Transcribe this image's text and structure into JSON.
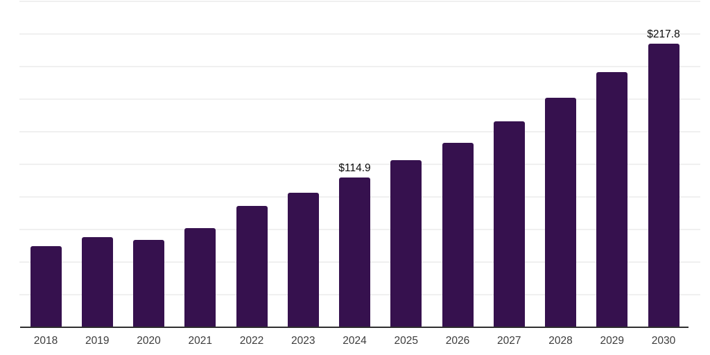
{
  "chart_data": {
    "type": "bar",
    "title": "",
    "xlabel": "",
    "ylabel": "",
    "categories": [
      "2018",
      "2019",
      "2020",
      "2021",
      "2022",
      "2023",
      "2024",
      "2025",
      "2026",
      "2027",
      "2028",
      "2029",
      "2030"
    ],
    "values": [
      62.0,
      68.9,
      66.8,
      76.3,
      93.3,
      103.3,
      114.9,
      128.2,
      141.5,
      157.9,
      175.9,
      195.5,
      217.8
    ],
    "annotations": [
      {
        "category": "2024",
        "text": "$114.9"
      },
      {
        "category": "2030",
        "text": "$217.8"
      }
    ],
    "ylim": [
      0,
      250
    ],
    "grid_step": 25,
    "grid": true,
    "legend": false,
    "y_axis_labels_visible": false
  },
  "colors": {
    "background": "#FFFFFF",
    "bar": "#36114E",
    "gridline": "#F0F0F0",
    "axis_line": "#2E2E2E",
    "tick_label": "#3C3C3C",
    "annotation_label": "#0A0A0A"
  }
}
